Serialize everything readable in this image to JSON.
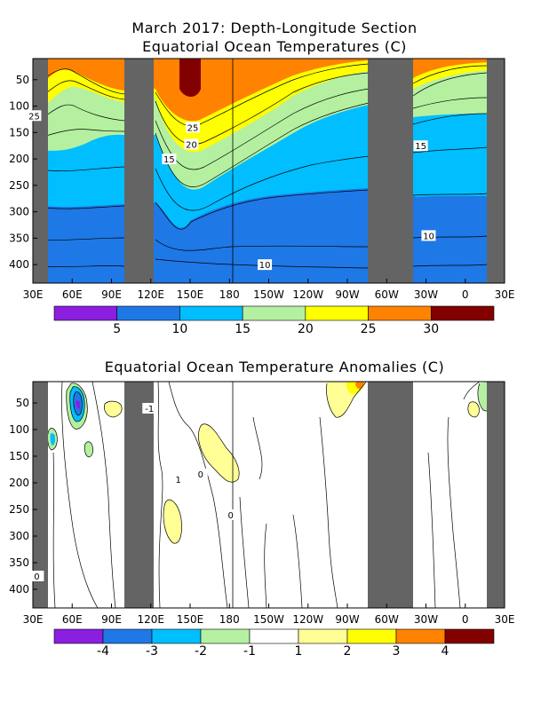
{
  "chart_data": [
    {
      "type": "heatmap",
      "title": "March 2017: Depth-Longitude Section",
      "subtitle": "Equatorial Ocean Temperatures (C)",
      "x_ticks": [
        "30E",
        "60E",
        "90E",
        "120E",
        "150E",
        "180",
        "150W",
        "120W",
        "90W",
        "60W",
        "30W",
        "0",
        "30E"
      ],
      "x_range_deg_east": [
        30,
        390
      ],
      "y_ticks": [
        50,
        100,
        150,
        200,
        250,
        300,
        350,
        400
      ],
      "y_range": [
        10,
        435
      ],
      "contour_labels": [
        {
          "text": "25",
          "lon": 31,
          "depth": 118
        },
        {
          "text": "25",
          "lon": 152,
          "depth": 140
        },
        {
          "text": "20",
          "lon": 151,
          "depth": 172
        },
        {
          "text": "15",
          "lon": 134,
          "depth": 200
        },
        {
          "text": "10",
          "lon": 207,
          "depth": 400
        },
        {
          "text": "15",
          "lon": 326,
          "depth": 175
        },
        {
          "text": "10",
          "lon": 332,
          "depth": 345
        }
      ],
      "colorbar": {
        "labels": [
          "5",
          "10",
          "15",
          "20",
          "25",
          "30"
        ],
        "colors": [
          "#8c1ee0",
          "#1e78e6",
          "#00beff",
          "#b4f0a0",
          "#ffff00",
          "#ff8200",
          "#820000"
        ]
      }
    },
    {
      "type": "heatmap",
      "title": "Equatorial Ocean Temperature Anomalies (C)",
      "x_ticks": [
        "30E",
        "60E",
        "90E",
        "120E",
        "150E",
        "180",
        "150W",
        "120W",
        "90W",
        "60W",
        "30W",
        "0",
        "30E"
      ],
      "x_range_deg_east": [
        30,
        390
      ],
      "y_ticks": [
        50,
        100,
        150,
        200,
        250,
        300,
        350,
        400
      ],
      "y_range": [
        10,
        435
      ],
      "contour_labels": [
        {
          "text": "-1",
          "lon": 119,
          "depth": 60
        },
        {
          "text": "1",
          "lon": 141,
          "depth": 193
        },
        {
          "text": "0",
          "lon": 158,
          "depth": 183
        },
        {
          "text": "0",
          "lon": 181,
          "depth": 260
        },
        {
          "text": "0",
          "lon": 33,
          "depth": 375
        }
      ],
      "colorbar": {
        "labels": [
          "-4",
          "-3",
          "-2",
          "-1",
          "1",
          "2",
          "3",
          "4"
        ],
        "colors": [
          "#8c1ee0",
          "#1e78e6",
          "#00beff",
          "#b4f0a0",
          "#ffffff",
          "#ffff96",
          "#ffff00",
          "#ff8200",
          "#820000"
        ]
      }
    }
  ]
}
